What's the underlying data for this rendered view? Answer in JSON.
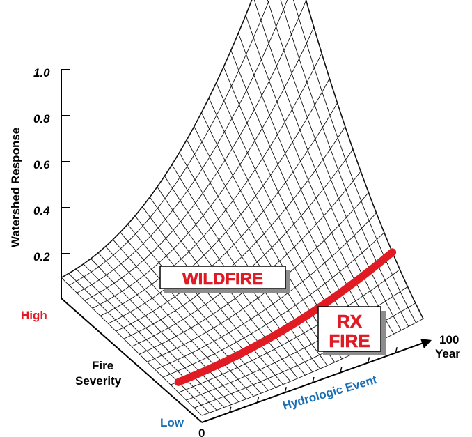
{
  "chart_data": {
    "type": "surface",
    "z_axis": {
      "label": "Watershed Response",
      "ticks": [
        "0.2",
        "0.4",
        "0.6",
        "0.8",
        "1.0"
      ]
    },
    "severity_axis": {
      "title_line1": "Fire",
      "title_line2": "Severity",
      "high_label": "High",
      "low_label": "Low"
    },
    "event_axis": {
      "label": "Hydrologic Event",
      "end_label_line1": "100",
      "end_label_line2": "Year"
    },
    "origin_label": "0",
    "annotations": {
      "wildfire": "WILDFIRE",
      "rx_line1": "RX",
      "rx_line2": "FIRE"
    },
    "colors": {
      "accent_red": "#e01b24",
      "accent_blue": "#1a6fb4",
      "mesh": "#111111"
    }
  }
}
